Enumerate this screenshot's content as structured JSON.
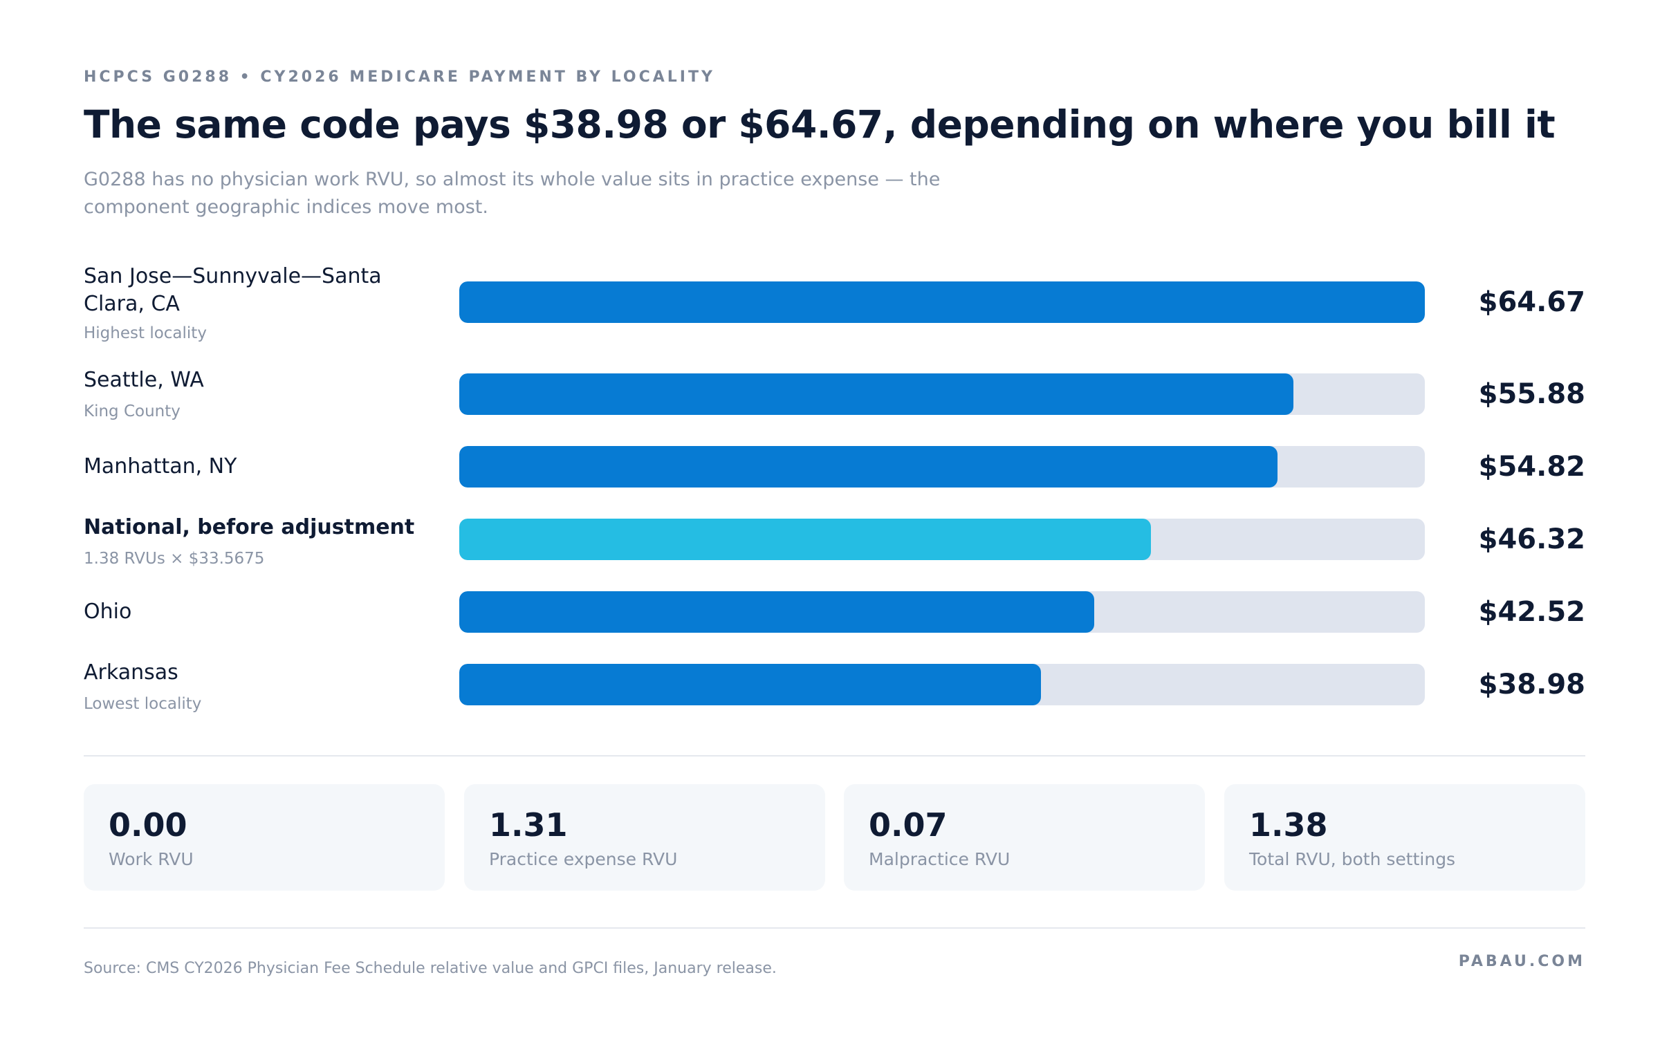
{
  "header": {
    "eyebrow": "HCPCS G0288 • CY2026 MEDICARE PAYMENT BY LOCALITY",
    "title": "The same code pays $38.98 or $64.67, depending on where you bill it",
    "subtitle": "G0288 has no physician work RVU, so almost its whole value sits in practice expense — the component geographic indices move most."
  },
  "colors": {
    "bar_primary": "#077bd3",
    "bar_national": "#25bde3",
    "track": "#dfe4ee"
  },
  "chart_data": {
    "type": "bar",
    "orientation": "horizontal",
    "xlim": [
      0,
      64.67
    ],
    "grid": false,
    "categories": [
      "San Jose—Sunnyvale—Santa Clara, CA",
      "Seattle, WA",
      "Manhattan, NY",
      "National, before adjustment",
      "Ohio",
      "Arkansas"
    ],
    "sublabels": [
      "Highest locality",
      "King County",
      "",
      "1.38 RVUs × $33.5675",
      "",
      "Lowest locality"
    ],
    "values": [
      64.67,
      55.88,
      54.82,
      46.32,
      42.52,
      38.98
    ],
    "value_labels": [
      "$64.67",
      "$55.88",
      "$54.82",
      "$46.32",
      "$42.52",
      "$38.98"
    ],
    "highlight_index": 3
  },
  "stats": [
    {
      "value": "0.00",
      "label": "Work RVU"
    },
    {
      "value": "1.31",
      "label": "Practice expense RVU"
    },
    {
      "value": "0.07",
      "label": "Malpractice RVU"
    },
    {
      "value": "1.38",
      "label": "Total RVU, both settings"
    }
  ],
  "footer": {
    "source": "Source: CMS CY2026 Physician Fee Schedule relative value and GPCI files, January release.",
    "brand": "PABAU.COM"
  }
}
